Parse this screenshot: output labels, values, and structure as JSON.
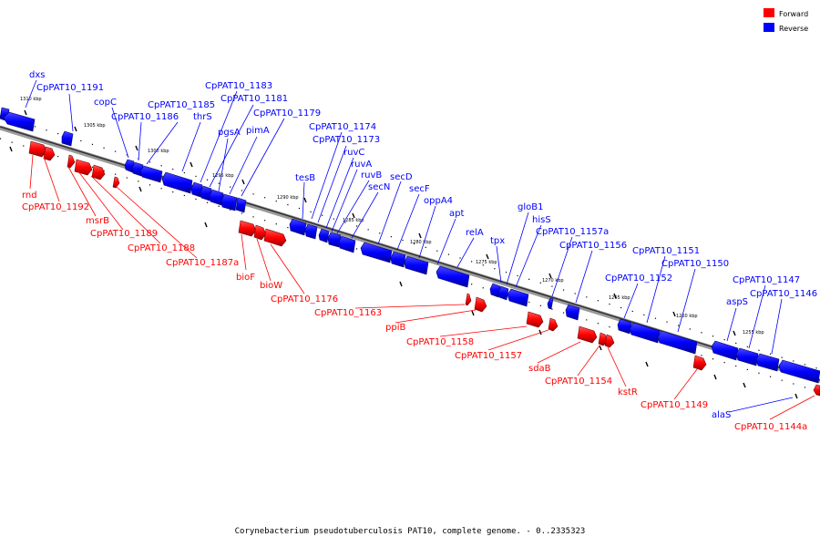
{
  "legend": {
    "forward": {
      "label": "Forward",
      "color": "#ff0000"
    },
    "reverse": {
      "label": "Reverse",
      "color": "#0000ff"
    }
  },
  "caption": "Corynebacterium pseudotuberculosis PAT10, complete genome. - 0..2335323",
  "ticks": [
    "1310 kbp",
    "1305 kbp",
    "1300 kbp",
    "1295 kbp",
    "1290 kbp",
    "1285 kbp",
    "1280 kbp",
    "1275 kbp",
    "1270 kbp",
    "1265 kbp",
    "1260 kbp",
    "1255 kbp"
  ],
  "reverse_labels": [
    "dxs",
    "CpPAT10_1191",
    "copC",
    "CpPAT10_1186",
    "CpPAT10_1185",
    "thrS",
    "CpPAT10_1183",
    "CpPAT10_1181",
    "pgsA",
    "pimA",
    "CpPAT10_1179",
    "CpPAT10_1174",
    "CpPAT10_1173",
    "ruvC",
    "tesB",
    "ruvA",
    "ruvB",
    "secN",
    "secD",
    "secF",
    "oppA4",
    "apt",
    "relA",
    "tpx",
    "gloB1",
    "hisS",
    "CpPAT10_1157a",
    "CpPAT10_1156",
    "CpPAT10_1151",
    "CpPAT10_1150",
    "CpPAT10_1152",
    "aspS",
    "CpPAT10_1147",
    "CpPAT10_1146",
    "alaS"
  ],
  "forward_labels": [
    "rnd",
    "CpPAT10_1192",
    "msrB",
    "CpPAT10_1189",
    "CpPAT10_1188",
    "CpPAT10_1187a",
    "bioF",
    "bioW",
    "CpPAT10_1176",
    "CpPAT10_1163",
    "ppiB",
    "CpPAT10_1158",
    "CpPAT10_1157",
    "sdaB",
    "CpPAT10_1154",
    "kstR",
    "CpPAT10_1149",
    "CpPAT10_1144a"
  ]
}
